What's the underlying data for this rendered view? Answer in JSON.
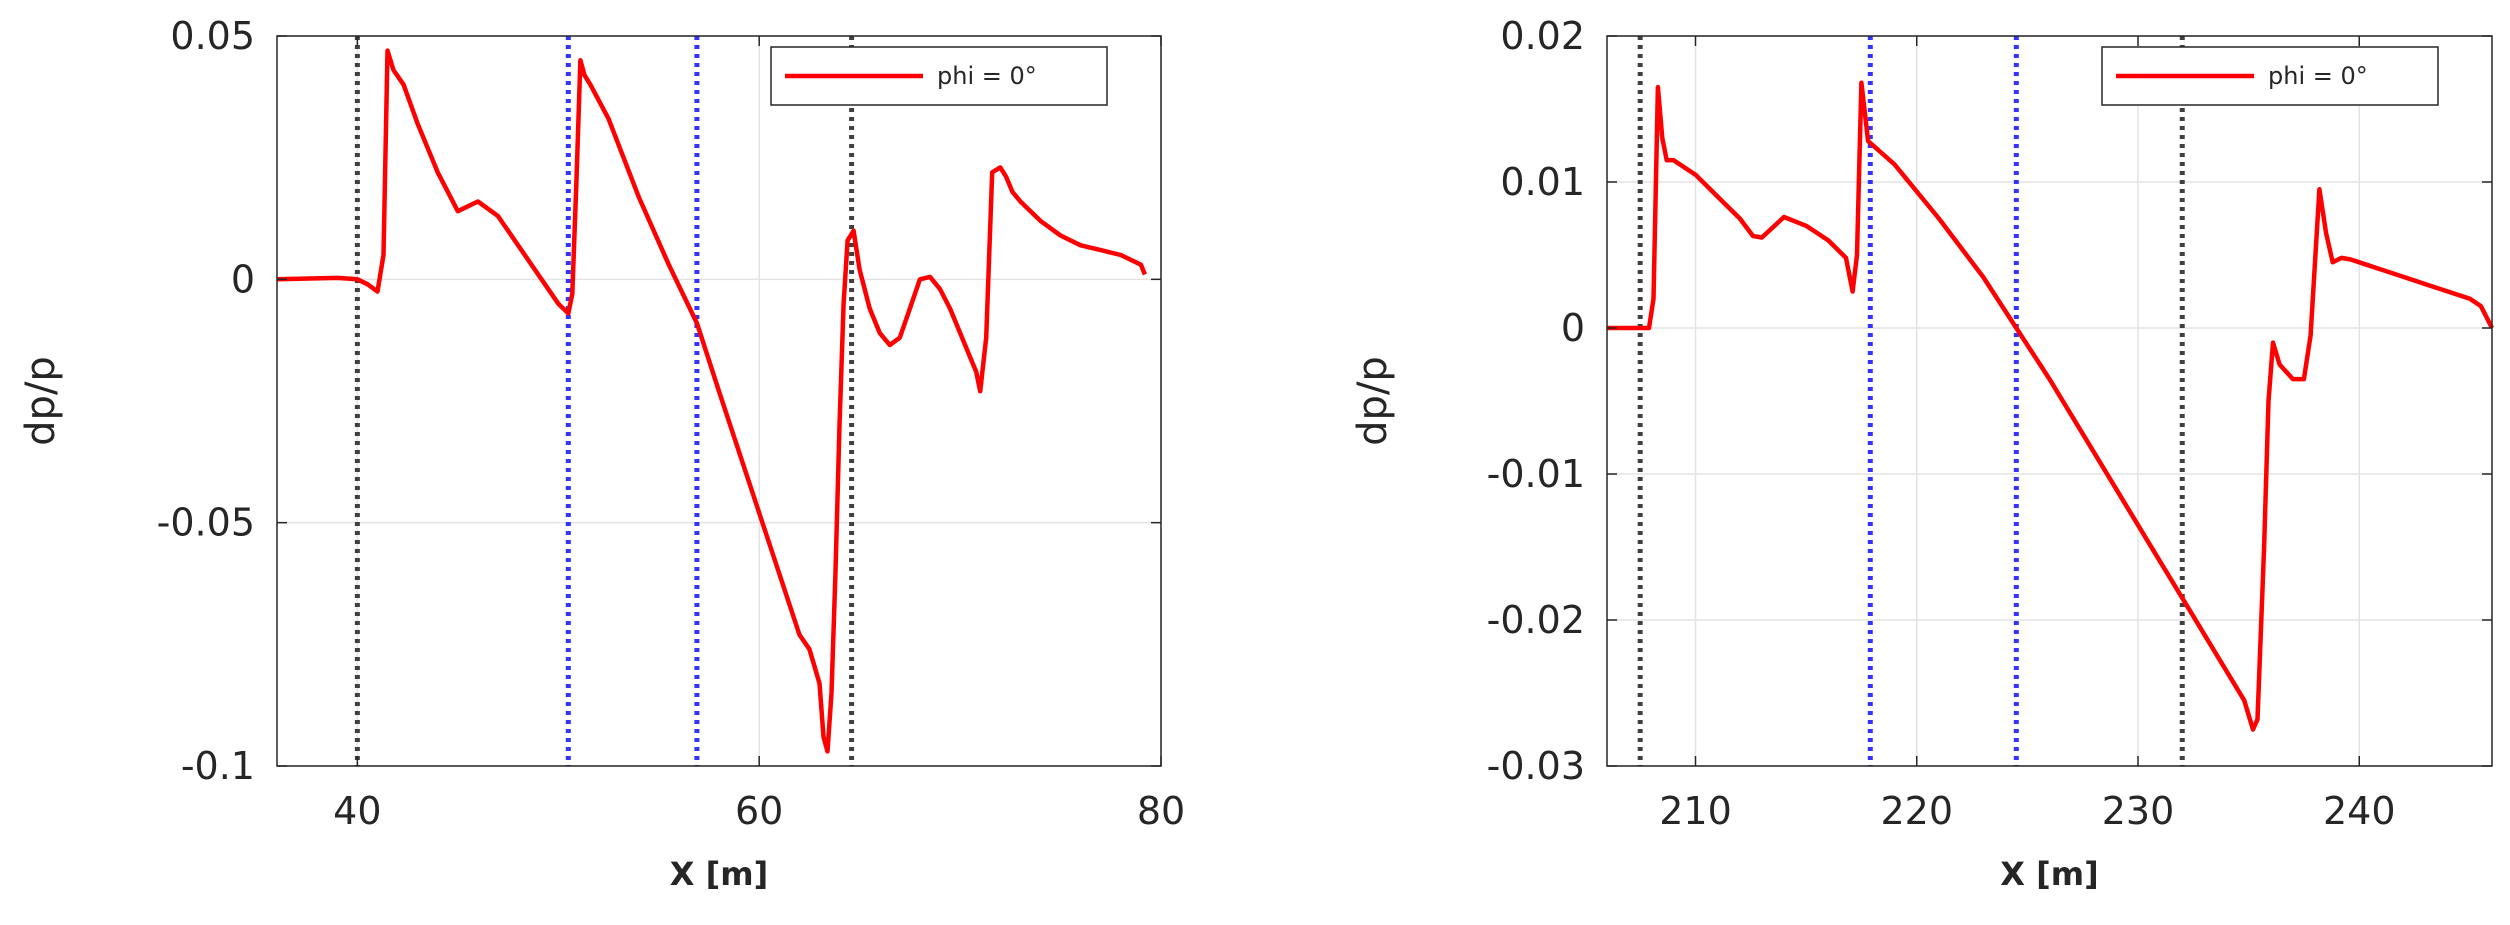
{
  "chart_data": [
    {
      "type": "line",
      "xlabel": "X [m]",
      "ylabel": "dp/p",
      "xlim": [
        36,
        80
      ],
      "ylim": [
        -0.1,
        0.05
      ],
      "xticks": [
        40,
        60,
        80
      ],
      "xtick_labels": [
        "40",
        "60",
        "80"
      ],
      "yticks": [
        -0.1,
        -0.05,
        0,
        0.05
      ],
      "ytick_labels": [
        "-0.1",
        "-0.05",
        "0",
        "0.05"
      ],
      "grid": true,
      "legend_position": "top-right",
      "vlines": [
        {
          "x": 40.0,
          "color": "#404040",
          "style": "dotted"
        },
        {
          "x": 50.5,
          "color": "#3333ff",
          "style": "dotted"
        },
        {
          "x": 56.9,
          "color": "#3333ff",
          "style": "dotted"
        },
        {
          "x": 64.6,
          "color": "#404040",
          "style": "dotted"
        }
      ],
      "series": [
        {
          "name": "phi = 0°",
          "color": "#ff0000",
          "x": [
            36,
            39,
            40,
            40.5,
            41,
            41.3,
            41.5,
            41.8,
            42.3,
            43,
            44,
            45,
            46,
            47,
            48,
            49,
            50,
            50.5,
            50.7,
            50.9,
            51.1,
            51.3,
            51.6,
            52.5,
            54,
            55.5,
            56.9,
            58,
            60,
            62,
            62.5,
            63,
            63.2,
            63.4,
            63.6,
            63.8,
            64,
            64.2,
            64.4,
            64.7,
            65,
            65.5,
            66,
            66.5,
            67,
            67.5,
            68,
            68.5,
            69,
            69.5,
            70,
            70.5,
            70.8,
            71,
            71.3,
            71.6,
            72,
            72.3,
            72.6,
            73,
            74,
            75,
            76,
            77,
            78,
            78.5,
            79,
            79.2
          ],
          "y": [
            0.0,
            0.0003,
            0.0,
            -0.001,
            -0.0025,
            0.005,
            0.047,
            0.043,
            0.04,
            0.032,
            0.022,
            0.014,
            0.016,
            0.013,
            0.007,
            0.001,
            -0.005,
            -0.007,
            -0.003,
            0.02,
            0.045,
            0.042,
            0.04,
            0.033,
            0.017,
            0.003,
            -0.009,
            -0.023,
            -0.048,
            -0.073,
            -0.076,
            -0.083,
            -0.094,
            -0.097,
            -0.085,
            -0.06,
            -0.03,
            -0.005,
            0.008,
            0.01,
            0.002,
            -0.006,
            -0.011,
            -0.0135,
            -0.012,
            -0.006,
            0.0,
            0.0005,
            -0.002,
            -0.006,
            -0.011,
            -0.016,
            -0.019,
            -0.023,
            -0.012,
            0.022,
            0.023,
            0.021,
            0.018,
            0.016,
            0.012,
            0.009,
            0.007,
            0.006,
            0.005,
            0.004,
            0.003,
            0.001
          ]
        }
      ]
    },
    {
      "type": "line",
      "xlabel": "X [m]",
      "ylabel": "dp/p",
      "xlim": [
        206,
        246
      ],
      "ylim": [
        -0.03,
        0.02
      ],
      "xticks": [
        210,
        220,
        230,
        240
      ],
      "xtick_labels": [
        "210",
        "220",
        "230",
        "240"
      ],
      "yticks": [
        -0.03,
        -0.02,
        -0.01,
        0,
        0.01,
        0.02
      ],
      "ytick_labels": [
        "-0.03",
        "-0.02",
        "-0.01",
        "0",
        "0.01",
        "0.02"
      ],
      "grid": true,
      "legend_position": "top-right",
      "vlines": [
        {
          "x": 207.5,
          "color": "#404040",
          "style": "dotted"
        },
        {
          "x": 217.9,
          "color": "#3333ff",
          "style": "dotted"
        },
        {
          "x": 224.5,
          "color": "#3333ff",
          "style": "dotted"
        },
        {
          "x": 232.0,
          "color": "#404040",
          "style": "dotted"
        }
      ],
      "series": [
        {
          "name": "phi = 0°",
          "color": "#ff0000",
          "x": [
            206,
            207.5,
            207.9,
            208.1,
            208.3,
            208.5,
            208.7,
            209,
            210,
            211,
            212,
            212.6,
            213,
            214,
            215,
            216,
            216.8,
            217.1,
            217.3,
            217.5,
            217.8,
            219,
            221,
            223,
            224.5,
            226,
            228,
            230,
            232,
            234,
            234.8,
            235.2,
            235.4,
            235.7,
            235.9,
            236.1,
            236.4,
            236.7,
            237,
            237.5,
            237.8,
            238.2,
            238.5,
            238.8,
            239.2,
            239.6,
            240,
            241,
            242,
            243,
            244,
            245,
            245.5,
            246
          ],
          "y": [
            0.0,
            0.0,
            0.0,
            0.002,
            0.0165,
            0.013,
            0.0115,
            0.0115,
            0.0105,
            0.009,
            0.0075,
            0.0063,
            0.0062,
            0.0076,
            0.007,
            0.006,
            0.0048,
            0.0025,
            0.005,
            0.0168,
            0.0128,
            0.0112,
            0.0075,
            0.0035,
            0.0,
            -0.0035,
            -0.0085,
            -0.0135,
            -0.0185,
            -0.0235,
            -0.0255,
            -0.0275,
            -0.0268,
            -0.015,
            -0.005,
            -0.001,
            -0.0025,
            -0.003,
            -0.0035,
            -0.0035,
            -0.0005,
            0.0095,
            0.0065,
            0.0045,
            0.0048,
            0.0047,
            0.0045,
            0.004,
            0.0035,
            0.003,
            0.0025,
            0.002,
            0.0015,
            0.0
          ]
        }
      ]
    }
  ]
}
